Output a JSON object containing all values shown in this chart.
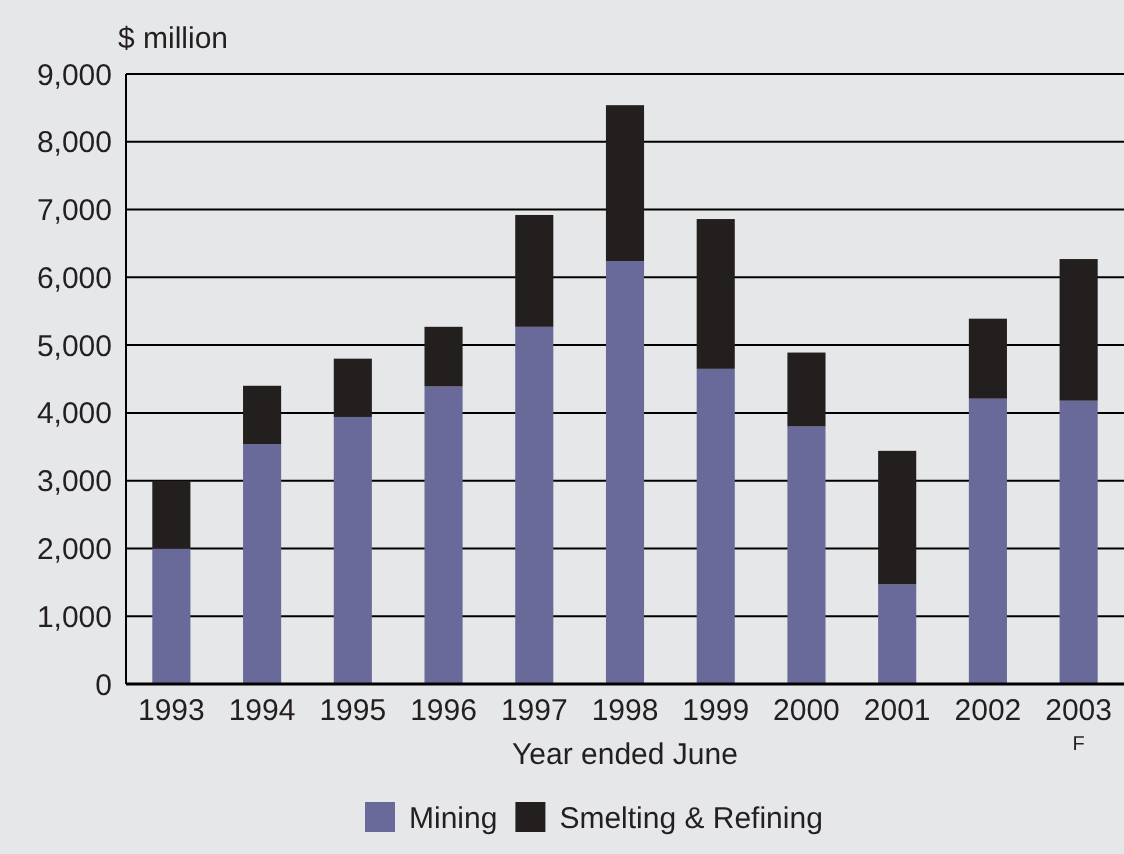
{
  "chart_data": {
    "type": "bar",
    "ylabel": "$ million",
    "xlabel": "Year ended June",
    "categories": [
      "1993",
      "1994",
      "1995",
      "1996",
      "1997",
      "1998",
      "1999",
      "2000",
      "2001",
      "2002",
      "2003$_{F}$"
    ],
    "stacked": true,
    "series": [
      {
        "name": "Mining",
        "color": "#6a6a9a",
        "values": [
          2000,
          3540,
          3940,
          4390,
          5270,
          6240,
          4650,
          3800,
          1470,
          4210,
          4180
        ]
      },
      {
        "name": "Smelting & Refining",
        "color": "#231f1e",
        "values": [
          1000,
          860,
          860,
          880,
          1650,
          2300,
          2210,
          1090,
          1970,
          1180,
          2090
        ]
      }
    ],
    "ylim": [
      0,
      9000
    ],
    "yticks": [
      {
        "value": 0,
        "label": "0"
      },
      {
        "value": 1000,
        "label": "1,000"
      },
      {
        "value": 2000,
        "label": "2,000"
      },
      {
        "value": 3000,
        "label": "3,000"
      },
      {
        "value": 4000,
        "label": "4,000"
      },
      {
        "value": 5000,
        "label": "5,000"
      },
      {
        "value": 6000,
        "label": "6,000"
      },
      {
        "value": 7000,
        "label": "7,000"
      },
      {
        "value": 8000,
        "label": "8,000"
      },
      {
        "value": 9000,
        "label": "9,000"
      }
    ],
    "grid": "y",
    "legend": "bottom"
  }
}
